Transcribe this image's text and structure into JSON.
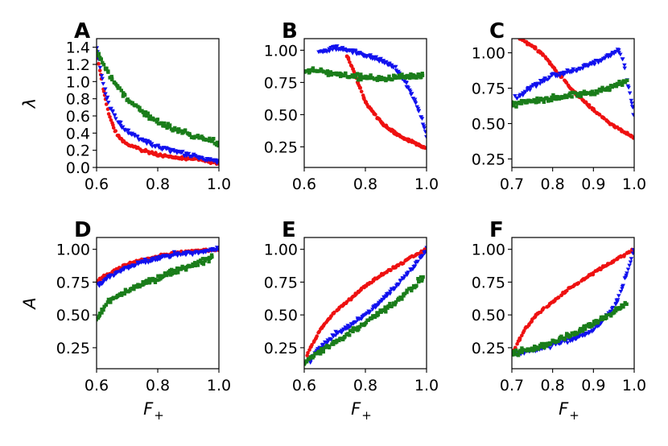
{
  "colors": {
    "red": "#ee1111",
    "blue": "#1111ee",
    "green": "#1a7d1a"
  },
  "series_names": [
    "red",
    "blue",
    "green"
  ],
  "axis_labels": {
    "lambda": "λ",
    "A": "A",
    "F": "F",
    "F_sub": "+"
  },
  "chart_data": [
    {
      "panel": "A",
      "type": "scatter",
      "ylabel": "λ",
      "xlabel": "",
      "xlim": [
        0.6,
        1.0
      ],
      "ylim": [
        0.0,
        1.5
      ],
      "xticks": [
        0.6,
        0.8,
        1.0
      ],
      "xticklabels": [
        "0.6",
        "0.8",
        "1.0"
      ],
      "yticks": [
        0.0,
        0.2,
        0.4,
        0.6,
        0.8,
        1.0,
        1.2,
        1.4
      ],
      "yticklabels": [
        "0.0",
        "0.2",
        "0.4",
        "0.6",
        "0.8",
        "1.0",
        "1.2",
        "1.4"
      ],
      "series": [
        {
          "name": "red",
          "marker": "circle",
          "x": [
            0.6,
            0.62,
            0.64,
            0.66,
            0.68,
            0.7,
            0.75,
            0.8,
            0.85,
            0.9,
            0.95,
            1.0
          ],
          "y": [
            1.35,
            0.95,
            0.62,
            0.42,
            0.33,
            0.27,
            0.2,
            0.15,
            0.12,
            0.1,
            0.08,
            0.05
          ]
        },
        {
          "name": "blue",
          "marker": "triangle-down",
          "x": [
            0.6,
            0.62,
            0.64,
            0.66,
            0.68,
            0.7,
            0.75,
            0.8,
            0.85,
            0.9,
            0.95,
            1.0
          ],
          "y": [
            1.42,
            1.0,
            0.75,
            0.6,
            0.5,
            0.42,
            0.32,
            0.24,
            0.2,
            0.15,
            0.1,
            0.07
          ]
        },
        {
          "name": "green",
          "marker": "square",
          "x": [
            0.6,
            0.62,
            0.64,
            0.66,
            0.68,
            0.7,
            0.75,
            0.8,
            0.85,
            0.9,
            0.95,
            1.0
          ],
          "y": [
            1.35,
            1.22,
            1.1,
            0.98,
            0.88,
            0.8,
            0.65,
            0.53,
            0.45,
            0.39,
            0.33,
            0.29
          ]
        }
      ]
    },
    {
      "panel": "B",
      "type": "scatter",
      "ylabel": "",
      "xlabel": "",
      "xlim": [
        0.6,
        1.0
      ],
      "ylim": [
        0.09,
        1.09
      ],
      "xticks": [
        0.6,
        0.8,
        1.0
      ],
      "xticklabels": [
        "0.6",
        "0.8",
        "1.0"
      ],
      "yticks": [
        0.25,
        0.5,
        0.75,
        1.0
      ],
      "yticklabels": [
        "0.25",
        "0.50",
        "0.75",
        "1.00"
      ],
      "series": [
        {
          "name": "red",
          "marker": "circle",
          "x": [
            0.74,
            0.76,
            0.78,
            0.8,
            0.83,
            0.86,
            0.9,
            0.94,
            0.97,
            1.0
          ],
          "y": [
            0.95,
            0.85,
            0.72,
            0.6,
            0.5,
            0.42,
            0.35,
            0.3,
            0.27,
            0.24
          ]
        },
        {
          "name": "blue",
          "marker": "triangle-down",
          "x": [
            0.65,
            0.7,
            0.75,
            0.8,
            0.85,
            0.9,
            0.93,
            0.96,
            0.98,
            1.0
          ],
          "y": [
            0.98,
            1.02,
            1.0,
            0.96,
            0.92,
            0.86,
            0.75,
            0.62,
            0.5,
            0.33
          ]
        },
        {
          "name": "green",
          "marker": "square",
          "x": [
            0.6,
            0.65,
            0.7,
            0.75,
            0.8,
            0.85,
            0.9,
            0.95,
            0.99
          ],
          "y": [
            0.83,
            0.84,
            0.82,
            0.8,
            0.79,
            0.78,
            0.79,
            0.8,
            0.81
          ]
        }
      ]
    },
    {
      "panel": "C",
      "type": "scatter",
      "ylabel": "",
      "xlabel": "",
      "xlim": [
        0.7,
        1.0
      ],
      "ylim": [
        0.19,
        1.1
      ],
      "xticks": [
        0.7,
        0.8,
        0.9,
        1.0
      ],
      "xticklabels": [
        "0.7",
        "0.8",
        "0.9",
        "1.0"
      ],
      "yticks": [
        0.25,
        0.5,
        0.75,
        1.0
      ],
      "yticklabels": [
        "0.25",
        "0.50",
        "0.75",
        "1.00"
      ],
      "series": [
        {
          "name": "red",
          "marker": "circle",
          "x": [
            0.72,
            0.75,
            0.78,
            0.8,
            0.83,
            0.86,
            0.9,
            0.94,
            0.97,
            1.0
          ],
          "y": [
            1.1,
            1.05,
            0.98,
            0.9,
            0.8,
            0.7,
            0.6,
            0.5,
            0.45,
            0.4
          ]
        },
        {
          "name": "blue",
          "marker": "triangle-down",
          "x": [
            0.71,
            0.75,
            0.8,
            0.85,
            0.9,
            0.94,
            0.96,
            0.97,
            0.98,
            0.99,
            1.0
          ],
          "y": [
            0.68,
            0.76,
            0.84,
            0.87,
            0.93,
            0.98,
            1.02,
            0.98,
            0.85,
            0.7,
            0.55
          ]
        },
        {
          "name": "green",
          "marker": "square",
          "x": [
            0.7,
            0.75,
            0.8,
            0.85,
            0.9,
            0.95,
            0.98
          ],
          "y": [
            0.63,
            0.66,
            0.68,
            0.7,
            0.72,
            0.76,
            0.8
          ]
        }
      ]
    },
    {
      "panel": "D",
      "type": "scatter",
      "ylabel": "A",
      "xlabel": "F+",
      "xlim": [
        0.6,
        1.0
      ],
      "ylim": [
        0.09,
        1.09
      ],
      "xticks": [
        0.6,
        0.8,
        1.0
      ],
      "xticklabels": [
        "0.6",
        "0.8",
        "1.0"
      ],
      "yticks": [
        0.25,
        0.5,
        0.75,
        1.0
      ],
      "yticklabels": [
        "0.25",
        "0.50",
        "0.75",
        "1.00"
      ],
      "series": [
        {
          "name": "red",
          "marker": "circle",
          "x": [
            0.6,
            0.65,
            0.7,
            0.75,
            0.8,
            0.85,
            0.9,
            0.95,
            1.0
          ],
          "y": [
            0.76,
            0.83,
            0.89,
            0.92,
            0.95,
            0.97,
            0.98,
            0.99,
            1.0
          ]
        },
        {
          "name": "blue",
          "marker": "triangle-down",
          "x": [
            0.6,
            0.65,
            0.7,
            0.75,
            0.8,
            0.85,
            0.9,
            0.95,
            1.0
          ],
          "y": [
            0.72,
            0.8,
            0.86,
            0.9,
            0.93,
            0.96,
            0.97,
            0.99,
            1.0
          ]
        },
        {
          "name": "green",
          "marker": "square",
          "x": [
            0.6,
            0.62,
            0.65,
            0.7,
            0.75,
            0.8,
            0.85,
            0.9,
            0.95,
            0.98
          ],
          "y": [
            0.45,
            0.55,
            0.62,
            0.68,
            0.73,
            0.78,
            0.83,
            0.87,
            0.91,
            0.94
          ]
        }
      ]
    },
    {
      "panel": "E",
      "type": "scatter",
      "ylabel": "",
      "xlabel": "F+",
      "xlim": [
        0.6,
        1.0
      ],
      "ylim": [
        0.09,
        1.09
      ],
      "xticks": [
        0.6,
        0.8,
        1.0
      ],
      "xticklabels": [
        "0.6",
        "0.8",
        "1.0"
      ],
      "yticks": [
        0.25,
        0.5,
        0.75,
        1.0
      ],
      "yticklabels": [
        "0.25",
        "0.50",
        "0.75",
        "1.00"
      ],
      "series": [
        {
          "name": "red",
          "marker": "circle",
          "x": [
            0.61,
            0.65,
            0.7,
            0.75,
            0.8,
            0.85,
            0.9,
            0.95,
            1.0
          ],
          "y": [
            0.2,
            0.38,
            0.52,
            0.62,
            0.72,
            0.8,
            0.87,
            0.94,
            1.0
          ]
        },
        {
          "name": "blue",
          "marker": "triangle-down",
          "x": [
            0.62,
            0.65,
            0.7,
            0.75,
            0.8,
            0.85,
            0.9,
            0.95,
            1.0
          ],
          "y": [
            0.15,
            0.25,
            0.35,
            0.42,
            0.5,
            0.6,
            0.72,
            0.85,
            1.0
          ]
        },
        {
          "name": "green",
          "marker": "square",
          "x": [
            0.6,
            0.65,
            0.7,
            0.75,
            0.8,
            0.85,
            0.9,
            0.95,
            0.99
          ],
          "y": [
            0.14,
            0.22,
            0.29,
            0.36,
            0.44,
            0.52,
            0.6,
            0.7,
            0.79
          ]
        }
      ]
    },
    {
      "panel": "F",
      "type": "scatter",
      "ylabel": "",
      "xlabel": "F+",
      "xlim": [
        0.7,
        1.0
      ],
      "ylim": [
        0.09,
        1.09
      ],
      "xticks": [
        0.7,
        0.8,
        0.9,
        1.0
      ],
      "xticklabels": [
        "0.7",
        "0.8",
        "0.9",
        "1.0"
      ],
      "yticks": [
        0.25,
        0.5,
        0.75,
        1.0
      ],
      "yticklabels": [
        "0.25",
        "0.50",
        "0.75",
        "1.00"
      ],
      "series": [
        {
          "name": "red",
          "marker": "circle",
          "x": [
            0.7,
            0.73,
            0.76,
            0.8,
            0.84,
            0.88,
            0.92,
            0.96,
            1.0
          ],
          "y": [
            0.2,
            0.38,
            0.5,
            0.6,
            0.7,
            0.78,
            0.86,
            0.93,
            1.0
          ]
        },
        {
          "name": "blue",
          "marker": "triangle-down",
          "x": [
            0.71,
            0.75,
            0.8,
            0.85,
            0.9,
            0.93,
            0.96,
            0.98,
            1.0
          ],
          "y": [
            0.2,
            0.23,
            0.27,
            0.32,
            0.38,
            0.48,
            0.62,
            0.8,
            1.0
          ]
        },
        {
          "name": "green",
          "marker": "square",
          "x": [
            0.7,
            0.75,
            0.8,
            0.85,
            0.9,
            0.95,
            0.98
          ],
          "y": [
            0.2,
            0.24,
            0.29,
            0.36,
            0.43,
            0.52,
            0.59
          ]
        }
      ]
    }
  ]
}
